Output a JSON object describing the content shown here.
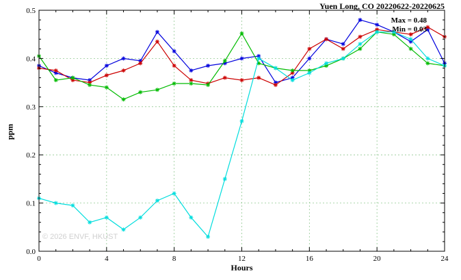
{
  "chart_data": {
    "type": "line",
    "title": "Yuen Long, CO 20220622-20220625",
    "xlabel": "Hours",
    "ylabel": "ppm",
    "xlim": [
      0,
      24
    ],
    "ylim": [
      0.0,
      0.5
    ],
    "x_ticks": [
      0,
      4,
      8,
      12,
      16,
      20,
      24
    ],
    "y_ticks": [
      0,
      0.1,
      0.2,
      0.3,
      0.4,
      0.5
    ],
    "y_tick_labels": [
      "0.0",
      "0.1",
      "0.2",
      "0.3",
      "0.4",
      "0.5"
    ],
    "x_minor_step": 1,
    "y_minor_step": 0.02,
    "grid": true,
    "grid_color": "#90c890",
    "axis_color": "#000000",
    "marker": "asterisk",
    "legend_position": "none",
    "annotations": [
      {
        "text": "Max = 0.48"
      },
      {
        "text": "Min = 0.03"
      }
    ],
    "watermark": "© 2026 ENVF, HKUST",
    "x": [
      0,
      1,
      2,
      3,
      4,
      5,
      6,
      7,
      8,
      9,
      10,
      11,
      12,
      13,
      14,
      15,
      16,
      17,
      18,
      19,
      20,
      21,
      22,
      23,
      24
    ],
    "series": [
      {
        "name": "blue",
        "color": "#0000dd",
        "values": [
          0.385,
          0.37,
          0.36,
          0.355,
          0.385,
          0.4,
          0.395,
          0.455,
          0.415,
          0.375,
          0.385,
          0.39,
          0.4,
          0.405,
          0.35,
          0.36,
          0.4,
          0.44,
          0.43,
          0.48,
          0.47,
          0.455,
          0.435,
          0.46,
          0.39
        ]
      },
      {
        "name": "red",
        "color": "#cc0000",
        "values": [
          0.38,
          0.375,
          0.355,
          0.35,
          0.365,
          0.375,
          0.39,
          0.435,
          0.385,
          0.355,
          0.348,
          0.36,
          0.355,
          0.36,
          0.345,
          0.37,
          0.42,
          0.44,
          0.42,
          0.445,
          0.46,
          0.455,
          0.45,
          0.465,
          0.445
        ]
      },
      {
        "name": "green",
        "color": "#00bb00",
        "values": [
          0.405,
          0.355,
          0.36,
          0.345,
          0.34,
          0.315,
          0.33,
          0.335,
          0.348,
          0.348,
          0.345,
          0.395,
          0.452,
          0.39,
          0.38,
          0.375,
          0.375,
          0.385,
          0.4,
          0.42,
          0.455,
          0.45,
          0.42,
          0.39,
          0.385
        ]
      },
      {
        "name": "cyan",
        "color": "#00dddd",
        "values": [
          0.11,
          0.1,
          0.095,
          0.06,
          0.07,
          0.045,
          0.07,
          0.105,
          0.12,
          0.07,
          0.03,
          0.15,
          0.27,
          0.4,
          0.38,
          0.355,
          0.37,
          0.39,
          0.4,
          0.43,
          0.455,
          0.455,
          0.44,
          0.4,
          0.385
        ]
      }
    ]
  }
}
